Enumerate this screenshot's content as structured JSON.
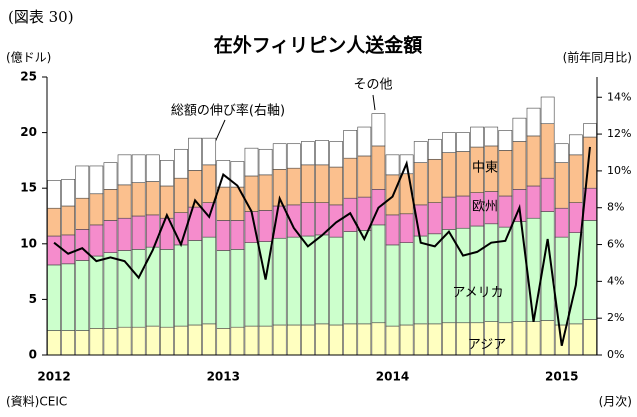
{
  "figure_label": "(図表 30)",
  "source": "(資料)CEIC",
  "x_unit": "(月次)",
  "chart_data": {
    "type": "stacked_bar_line",
    "title": "在外フィリピン人送金額",
    "y_label": "(億ドル)",
    "y2_label": "(前年同月比)",
    "categories": [
      "2012",
      null,
      null,
      null,
      null,
      null,
      null,
      null,
      null,
      null,
      null,
      null,
      "2013",
      null,
      null,
      null,
      null,
      null,
      null,
      null,
      null,
      null,
      null,
      null,
      "2014",
      null,
      null,
      null,
      null,
      null,
      null,
      null,
      null,
      null,
      null,
      null,
      "2015",
      null,
      null
    ],
    "series": [
      {
        "name": "アジア",
        "color": "#ffffc0",
        "values": [
          2.2,
          2.2,
          2.2,
          2.4,
          2.4,
          2.5,
          2.5,
          2.6,
          2.5,
          2.6,
          2.7,
          2.8,
          2.4,
          2.5,
          2.6,
          2.6,
          2.7,
          2.7,
          2.7,
          2.8,
          2.7,
          2.8,
          2.8,
          2.9,
          2.6,
          2.7,
          2.8,
          2.8,
          2.9,
          2.9,
          2.9,
          3.0,
          2.9,
          3.0,
          3.0,
          3.1,
          2.7,
          2.8,
          3.2
        ]
      },
      {
        "name": "アメリカ",
        "color": "#ccffcc",
        "values": [
          5.9,
          6.0,
          6.3,
          6.5,
          6.8,
          6.9,
          7.0,
          7.1,
          7.0,
          7.3,
          7.6,
          7.8,
          7.0,
          7.0,
          7.5,
          7.6,
          7.8,
          7.9,
          8.0,
          8.0,
          7.9,
          8.3,
          8.4,
          8.8,
          7.3,
          7.4,
          7.9,
          8.1,
          8.4,
          8.5,
          8.7,
          8.8,
          8.6,
          9.0,
          9.3,
          9.8,
          7.9,
          8.2,
          8.9
        ]
      },
      {
        "name": "欧州",
        "color": "#f58ccc",
        "values": [
          2.6,
          2.6,
          2.8,
          2.8,
          2.9,
          2.9,
          3.0,
          2.9,
          2.8,
          2.9,
          3.0,
          3.1,
          2.7,
          2.6,
          2.8,
          2.8,
          2.9,
          2.9,
          3.0,
          2.9,
          2.9,
          3.0,
          3.0,
          3.2,
          2.7,
          2.6,
          2.8,
          2.8,
          2.9,
          2.9,
          3.0,
          2.9,
          2.8,
          2.9,
          2.9,
          3.0,
          2.6,
          2.7,
          2.9
        ]
      },
      {
        "name": "中東",
        "color": "#fbc08e",
        "values": [
          2.5,
          2.6,
          2.8,
          2.8,
          2.8,
          3.0,
          3.0,
          3.0,
          2.9,
          3.1,
          3.3,
          3.4,
          3.0,
          3.0,
          3.2,
          3.2,
          3.3,
          3.3,
          3.4,
          3.4,
          3.4,
          3.6,
          3.7,
          3.9,
          3.6,
          3.6,
          3.8,
          3.9,
          4.0,
          4.0,
          4.1,
          4.1,
          4.1,
          4.3,
          4.5,
          4.9,
          4.1,
          4.3,
          4.6
        ]
      },
      {
        "name": "その他",
        "color": "#ffffff",
        "values": [
          2.5,
          2.4,
          2.9,
          2.5,
          2.4,
          2.7,
          2.5,
          2.4,
          2.3,
          2.6,
          2.9,
          2.4,
          2.4,
          2.3,
          2.5,
          2.3,
          2.3,
          2.2,
          2.1,
          2.2,
          2.3,
          2.5,
          2.6,
          2.9,
          1.8,
          1.7,
          1.9,
          1.8,
          1.8,
          1.7,
          1.8,
          1.7,
          1.8,
          2.1,
          2.5,
          2.4,
          1.7,
          1.8,
          1.2
        ]
      },
      {
        "name": "総額の伸び率(右軸)",
        "color": "#000000",
        "axis": "y2",
        "values": [
          6.1,
          5.5,
          5.8,
          5.1,
          5.3,
          5.1,
          4.2,
          5.7,
          7.6,
          6.0,
          8.4,
          7.5,
          9.8,
          9.2,
          7.8,
          4.1,
          8.5,
          6.9,
          5.9,
          6.5,
          7.2,
          7.7,
          6.3,
          8.0,
          8.6,
          10.4,
          6.1,
          5.9,
          6.7,
          5.4,
          5.6,
          6.1,
          6.2,
          8.0,
          1.8,
          6.3,
          0.5,
          3.8,
          11.3
        ]
      }
    ],
    "ylim": [
      0,
      25
    ],
    "yticks": [
      0,
      5,
      10,
      15,
      20,
      25
    ],
    "y2lim": [
      0,
      15.1
    ],
    "y2ticks": [
      {
        "value": 0,
        "label": "0%"
      },
      {
        "value": 2,
        "label": "2%"
      },
      {
        "value": 4,
        "label": "4%"
      },
      {
        "value": 6,
        "label": "6%"
      },
      {
        "value": 8,
        "label": "8%"
      },
      {
        "value": 10,
        "label": "10%"
      },
      {
        "value": 12,
        "label": "12%"
      },
      {
        "value": 14,
        "label": "14%"
      }
    ]
  }
}
